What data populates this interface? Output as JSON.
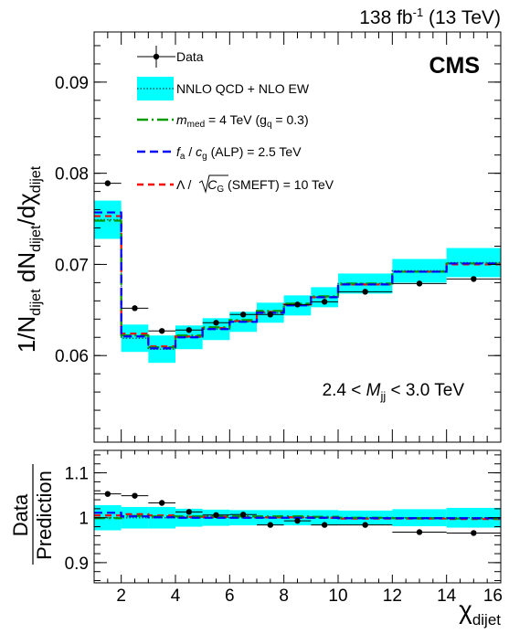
{
  "lumi": {
    "value": "138 fb",
    "sup": "-1",
    "energy": " (13 TeV)"
  },
  "experiment": "CMS",
  "mass_bin": {
    "prefix": "2.4 < ",
    "var": "M",
    "sub": "jj",
    "suffix": " < 3.0 TeV"
  },
  "legend": {
    "data": "Data",
    "band": "NNLO QCD + NLO EW",
    "mmed": {
      "sym": "m",
      "sub": "med",
      "text": " = 4 TeV (g",
      "gsub": "q",
      "tail": " = 0.3)"
    },
    "alp": {
      "sym1": "f",
      "sub1": "a",
      "mid": " / ",
      "sym2": "c",
      "sub2": "g",
      "tail": " (ALP) = 2.5 TeV"
    },
    "smeft": {
      "sym": "Λ",
      "mid": " / ",
      "sym2": "C",
      "sub2": "G",
      "tail": " (SMEFT) = 10 TeV"
    }
  },
  "axis_titles": {
    "top_y": {
      "a": "1/N",
      "a_sub": "dijet",
      "b": " dN",
      "b_sub": "dijet",
      "c": "/dχ",
      "c_sub": "dijet"
    },
    "ratio_y_num": "Data",
    "ratio_y_den": "Prediction",
    "x": {
      "sym": "χ",
      "sub": "dijet"
    }
  },
  "colors": {
    "data": "#000000",
    "band": "#00ffff",
    "nnlo_line": "#006060",
    "mmed": "#009900",
    "alp": "#0000ff",
    "smeft": "#ff0000"
  },
  "chart_data": [
    {
      "type": "line",
      "panel": "main",
      "bin_edges": [
        1,
        2,
        3,
        4,
        5,
        6,
        7,
        8,
        9,
        10,
        12,
        14,
        16
      ],
      "x_centers": [
        1.5,
        2.5,
        3.5,
        4.5,
        5.5,
        6.5,
        7.5,
        8.5,
        9.5,
        11,
        13,
        15
      ],
      "xlim": [
        1,
        16
      ],
      "ylim": [
        0.0505,
        0.0955
      ],
      "x_ticks": [
        2,
        4,
        6,
        8,
        10,
        12,
        14,
        16
      ],
      "y_ticks": [
        0.06,
        0.07,
        0.08,
        0.09
      ],
      "y_tick_labels": [
        "0.06",
        "0.07",
        "0.08",
        "0.09"
      ],
      "x_tick_labels": [
        "2",
        "4",
        "6",
        "8",
        "10",
        "12",
        "14",
        "16"
      ],
      "series": [
        {
          "name": "Data",
          "style": "points",
          "values": [
            0.0789,
            0.0652,
            0.0627,
            0.0628,
            0.0636,
            0.0645,
            0.0645,
            0.0656,
            0.0659,
            0.067,
            0.0679,
            0.0684
          ]
        },
        {
          "name": "NNLO QCD + NLO EW",
          "style": "band",
          "values": [
            0.0749,
            0.0619,
            0.0607,
            0.062,
            0.0629,
            0.0637,
            0.0647,
            0.0655,
            0.0664,
            0.0679,
            0.0693,
            0.0702
          ],
          "band_half_width": [
            0.0021,
            0.0015,
            0.0015,
            0.0013,
            0.0012,
            0.0011,
            0.0011,
            0.0011,
            0.0011,
            0.0011,
            0.0013,
            0.0016
          ]
        },
        {
          "name": "m_med = 4 TeV (g_q = 0.3)",
          "style": "dashdot",
          "values": [
            0.0748,
            0.0622,
            0.0609,
            0.0622,
            0.0631,
            0.0639,
            0.0649,
            0.0657,
            0.0665,
            0.0679,
            0.0692,
            0.0701
          ]
        },
        {
          "name": "f_a / c_g (ALP) = 2.5 TeV",
          "style": "dashed",
          "values": [
            0.0757,
            0.0621,
            0.0608,
            0.062,
            0.0629,
            0.0637,
            0.0647,
            0.0655,
            0.0664,
            0.0678,
            0.0692,
            0.0701
          ]
        },
        {
          "name": "Λ / √C_G (SMEFT) = 10 TeV",
          "style": "dashed",
          "values": [
            0.0753,
            0.0624,
            0.061,
            0.0621,
            0.063,
            0.0638,
            0.0648,
            0.0656,
            0.0664,
            0.0678,
            0.0692,
            0.07
          ]
        }
      ],
      "annotations": [
        "138 fb-1 (13 TeV)",
        "CMS",
        "2.4 < Mjj < 3.0 TeV"
      ]
    },
    {
      "type": "line",
      "panel": "ratio",
      "xlim": [
        1,
        16
      ],
      "ylim": [
        0.855,
        1.15
      ],
      "y_ticks": [
        0.9,
        1.0,
        1.1
      ],
      "y_tick_labels": [
        "0.9",
        "1",
        "1.1"
      ],
      "x_ticks": [
        2,
        4,
        6,
        8,
        10,
        12,
        14,
        16
      ],
      "x_tick_labels": [
        "2",
        "4",
        "6",
        "8",
        "10",
        "12",
        "14",
        "16"
      ],
      "series": [
        {
          "name": "Data",
          "style": "points",
          "values": [
            1.053,
            1.049,
            1.033,
            1.013,
            1.006,
            1.007,
            0.984,
            0.993,
            0.984,
            0.984,
            0.968,
            0.966
          ]
        },
        {
          "name": "NNLO QCD + NLO EW",
          "style": "band",
          "values": [
            1.0,
            1.0,
            1.0,
            1.0,
            1.0,
            1.0,
            1.0,
            1.0,
            1.0,
            1.0,
            1.0,
            1.0
          ],
          "band_half_width": [
            0.028,
            0.024,
            0.024,
            0.02,
            0.018,
            0.017,
            0.017,
            0.017,
            0.017,
            0.016,
            0.019,
            0.022
          ]
        },
        {
          "name": "m_med = 4 TeV (g_q = 0.3)",
          "style": "dashdot",
          "values": [
            0.999,
            1.004,
            1.003,
            1.003,
            1.003,
            1.003,
            1.003,
            1.003,
            1.002,
            1.0,
            0.999,
            0.998
          ]
        },
        {
          "name": "f_a / c_g (ALP) = 2.5 TeV",
          "style": "dashed",
          "values": [
            1.011,
            1.003,
            1.001,
            1.0,
            1.0,
            1.0,
            1.0,
            1.0,
            1.0,
            0.999,
            0.999,
            0.999
          ]
        },
        {
          "name": "Λ / √C_G (SMEFT) = 10 TeV",
          "style": "dashed",
          "values": [
            1.005,
            1.008,
            1.005,
            1.002,
            1.002,
            1.001,
            1.001,
            1.001,
            1.0,
            0.998,
            0.998,
            0.997
          ]
        }
      ]
    }
  ]
}
